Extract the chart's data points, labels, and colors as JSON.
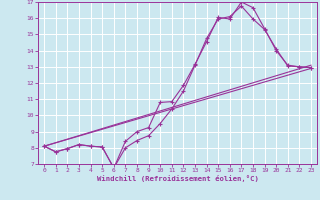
{
  "xlabel": "Windchill (Refroidissement éolien,°C)",
  "xlim": [
    -0.5,
    23.5
  ],
  "ylim": [
    7,
    17
  ],
  "xticks": [
    0,
    1,
    2,
    3,
    4,
    5,
    6,
    7,
    8,
    9,
    10,
    11,
    12,
    13,
    14,
    15,
    16,
    17,
    18,
    19,
    20,
    21,
    22,
    23
  ],
  "yticks": [
    7,
    8,
    9,
    10,
    11,
    12,
    13,
    14,
    15,
    16,
    17
  ],
  "background_color": "#cce8f0",
  "line_color": "#993399",
  "grid_color": "#ffffff",
  "lines": [
    {
      "x": [
        0,
        1,
        2,
        3,
        4,
        5,
        6,
        7,
        8,
        9,
        10,
        11,
        12,
        13,
        14,
        15,
        16,
        17,
        18,
        19,
        20,
        21,
        22,
        23
      ],
      "y": [
        8.1,
        7.75,
        7.95,
        8.2,
        8.1,
        8.05,
        6.75,
        8.4,
        9.0,
        9.25,
        10.8,
        10.85,
        11.85,
        13.15,
        14.55,
        16.05,
        15.95,
        17.0,
        16.65,
        15.35,
        14.0,
        13.1,
        13.0,
        12.95
      ],
      "marker": true
    },
    {
      "x": [
        0,
        1,
        2,
        3,
        4,
        5,
        6,
        7,
        8,
        9,
        10,
        11,
        12,
        13,
        14,
        15,
        16,
        17,
        18,
        19,
        20,
        21,
        22,
        23
      ],
      "y": [
        8.1,
        7.75,
        7.95,
        8.2,
        8.1,
        8.05,
        6.75,
        8.0,
        8.45,
        8.75,
        9.5,
        10.4,
        11.5,
        13.1,
        14.75,
        15.95,
        16.1,
        16.75,
        15.95,
        15.3,
        14.1,
        13.05,
        13.0,
        12.95
      ],
      "marker": true
    },
    {
      "x": [
        0,
        23
      ],
      "y": [
        8.1,
        12.9
      ],
      "marker": false
    },
    {
      "x": [
        0,
        23
      ],
      "y": [
        8.1,
        13.1
      ],
      "marker": false
    }
  ]
}
